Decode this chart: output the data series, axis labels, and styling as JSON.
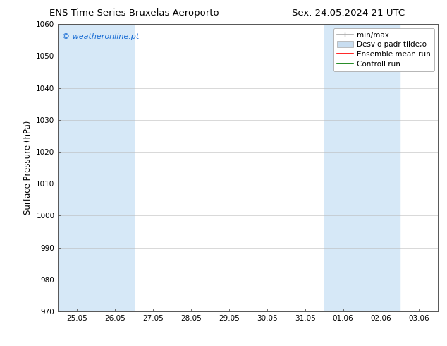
{
  "title_left": "ENS Time Series Bruxelas Aeroporto",
  "title_right": "Sex. 24.05.2024 21 UTC",
  "ylabel": "Surface Pressure (hPa)",
  "ylim": [
    970,
    1060
  ],
  "yticks": [
    970,
    980,
    990,
    1000,
    1010,
    1020,
    1030,
    1040,
    1050,
    1060
  ],
  "xtick_labels": [
    "25.05",
    "26.05",
    "27.05",
    "28.05",
    "29.05",
    "30.05",
    "31.05",
    "01.06",
    "02.06",
    "03.06"
  ],
  "watermark": "© weatheronline.pt",
  "watermark_color": "#1a6dd4",
  "shaded_bands": [
    {
      "xstart": 0.0,
      "xend": 2.0,
      "color": "#d6e8f7"
    },
    {
      "xstart": 7.0,
      "xend": 9.0,
      "color": "#d6e8f7"
    }
  ],
  "legend_label_minmax": "min/max",
  "legend_label_std": "Desvio padr tilde;o",
  "legend_label_ens": "Ensemble mean run",
  "legend_label_ctrl": "Controll run",
  "minmax_color": "#aaaaaa",
  "std_color": "#c8ddf0",
  "ens_color": "#ff0000",
  "ctrl_color": "#007700",
  "background_color": "#ffffff",
  "title_fontsize": 9.5,
  "tick_fontsize": 7.5,
  "ylabel_fontsize": 8.5,
  "legend_fontsize": 7.5
}
